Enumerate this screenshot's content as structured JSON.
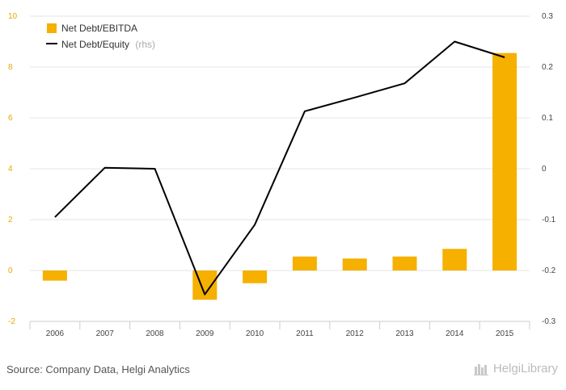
{
  "chart_data": {
    "type": "bar",
    "categories": [
      "2006",
      "2007",
      "2008",
      "2009",
      "2010",
      "2011",
      "2012",
      "2013",
      "2014",
      "2015"
    ],
    "series": [
      {
        "name": "Net Debt/EBITDA",
        "type": "bar",
        "axis": "left",
        "values": [
          -0.4,
          0,
          0,
          -1.15,
          -0.5,
          0.55,
          0.47,
          0.55,
          0.85,
          8.55
        ]
      },
      {
        "name": "Net Debt/Equity",
        "type": "line",
        "axis": "right",
        "values": [
          -0.095,
          0.002,
          0.0,
          -0.247,
          -0.11,
          0.113,
          0.14,
          0.168,
          0.25,
          0.219
        ]
      }
    ],
    "ylim_left": [
      -2,
      10
    ],
    "yticks_left": [
      "-2",
      "0",
      "2",
      "4",
      "6",
      "8",
      "10"
    ],
    "ylim_right": [
      -0.3,
      0.3
    ],
    "yticks_right": [
      "-0.3",
      "-0.2",
      "-0.1",
      "0",
      "0.1",
      "0.2",
      "0.3"
    ],
    "legend": {
      "bar_label": "Net Debt/EBITDA",
      "line_label": "Net Debt/Equity",
      "line_suffix": "(rhs)",
      "position": "top-left"
    },
    "grid": true,
    "colors": {
      "bar": "#f5b000",
      "line": "#000000",
      "grid": "#e6e6e6"
    }
  },
  "footer": {
    "source": "Source: Company Data, Helgi Analytics",
    "logo_text": "HelgiLibrary"
  }
}
